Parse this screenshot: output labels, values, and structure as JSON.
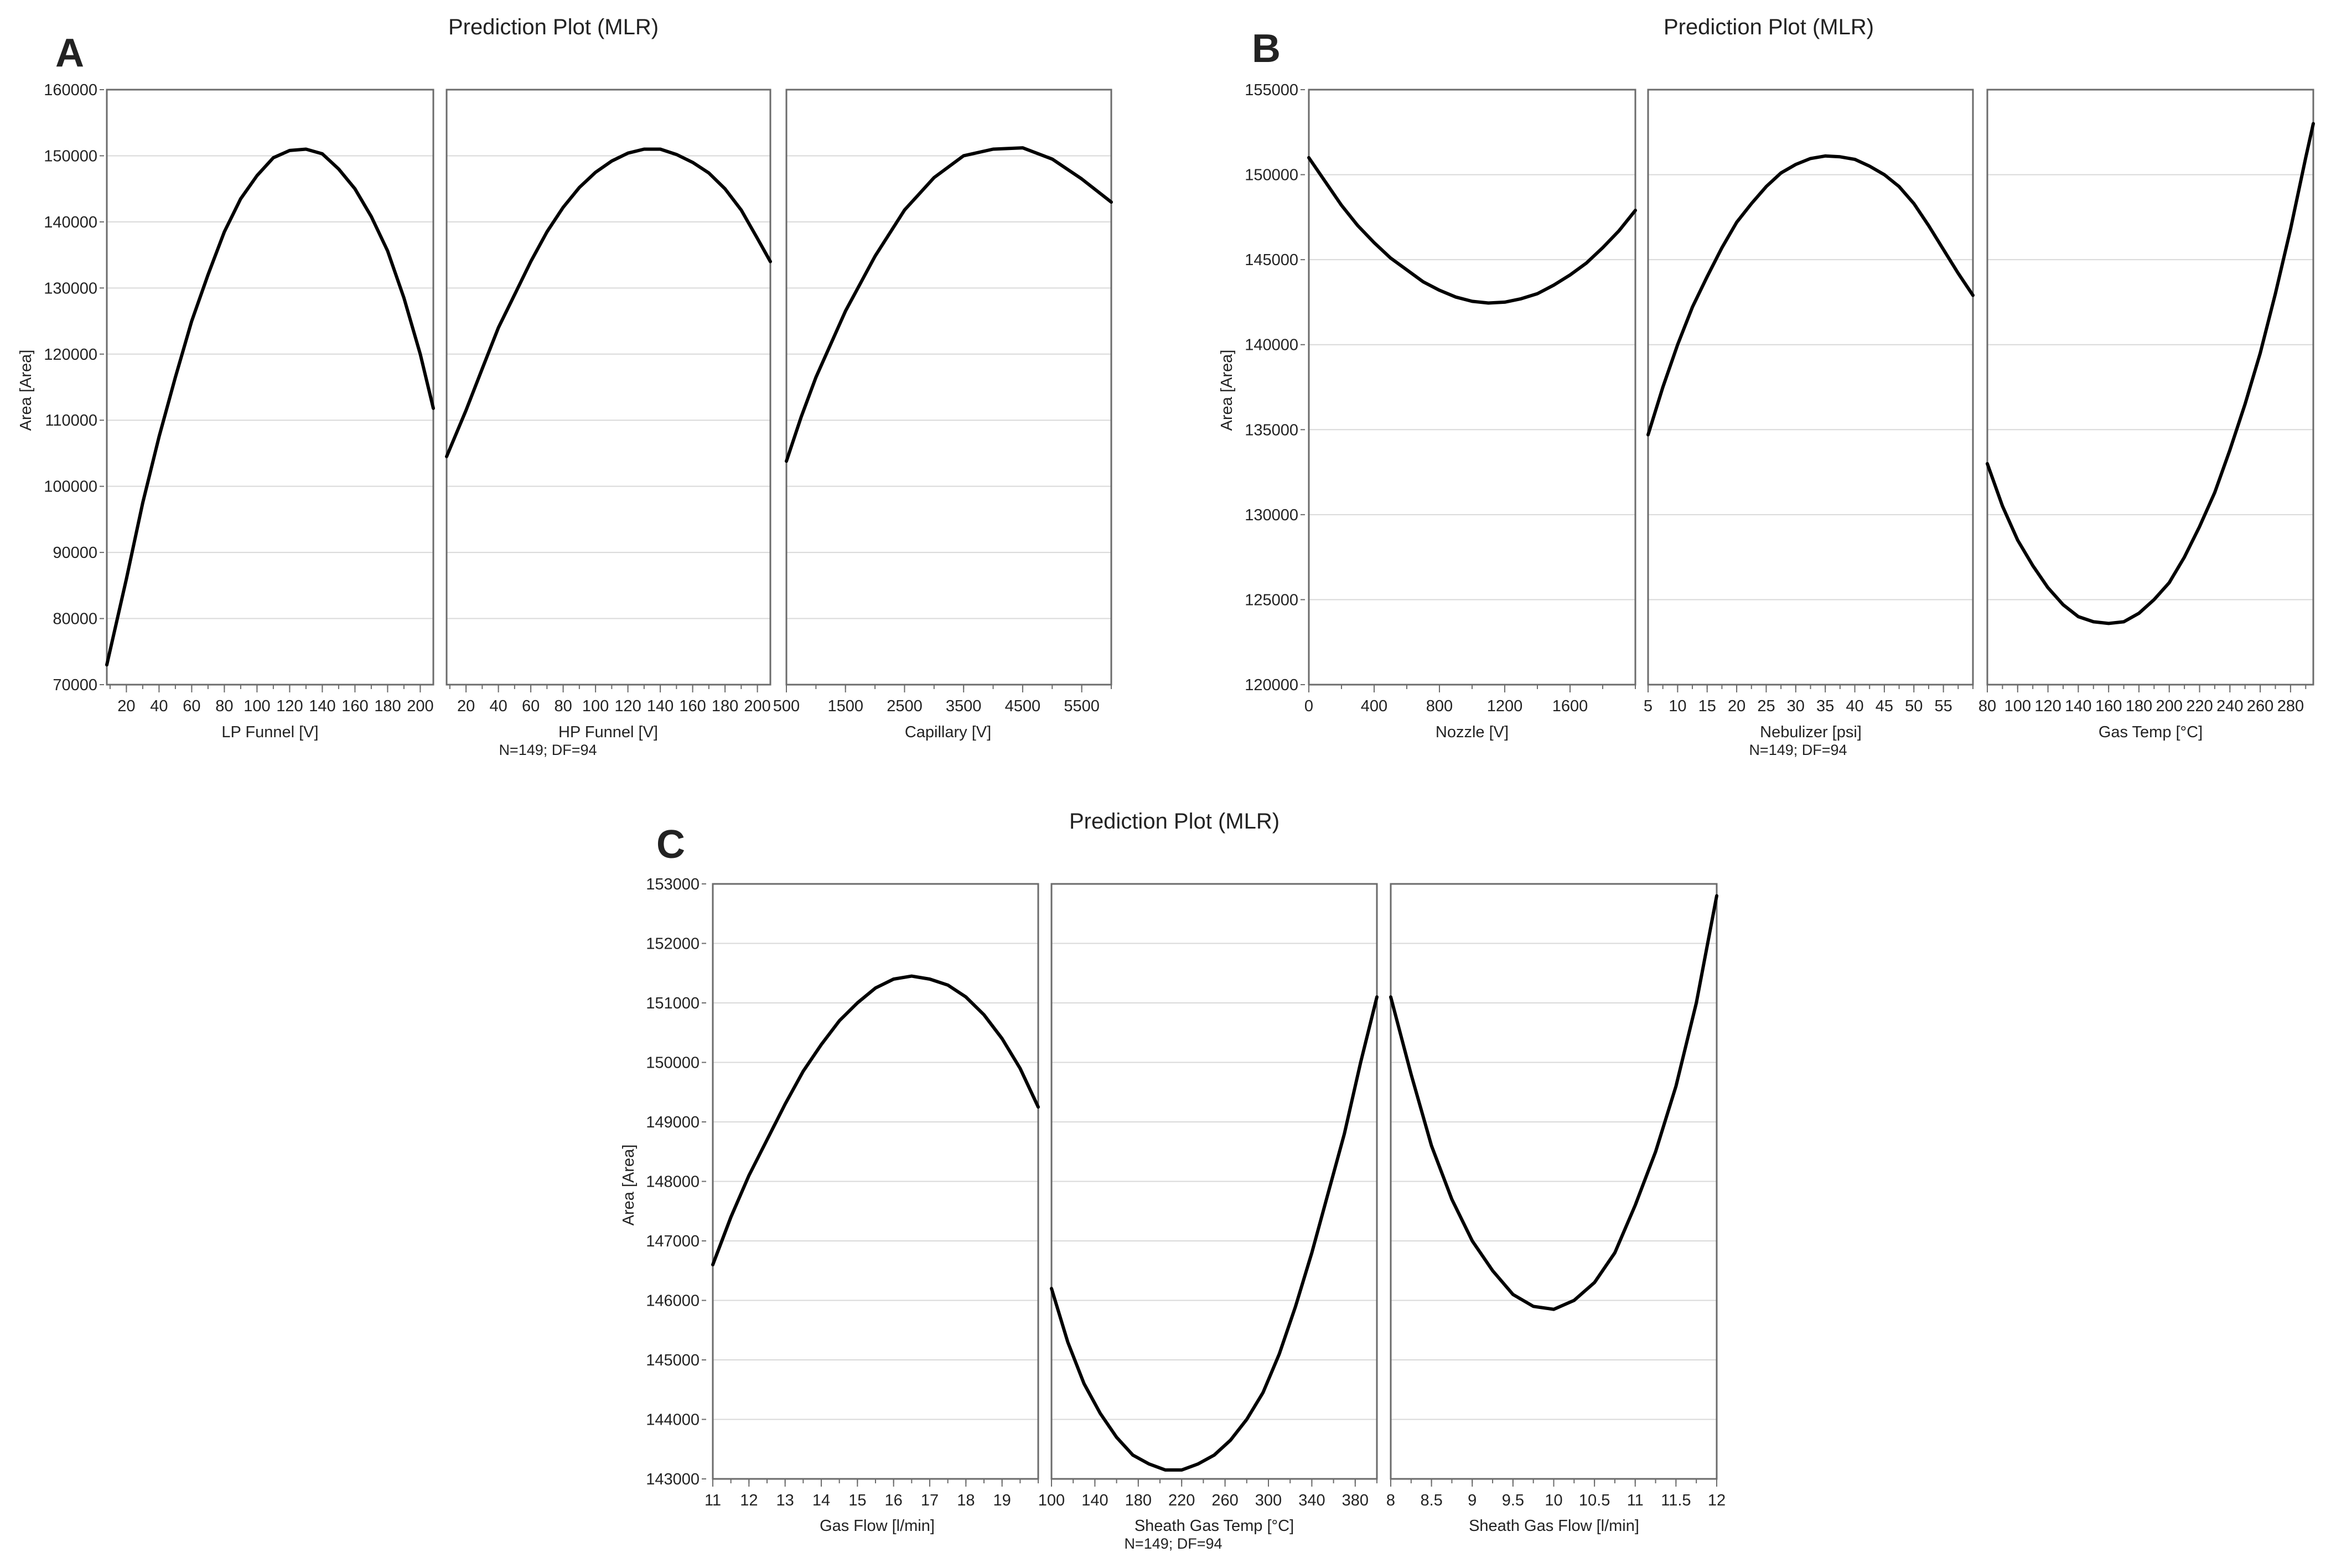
{
  "figure": {
    "colors": {
      "curve": "#000000",
      "frame": "#6b6b6b",
      "grid": "#d9d9d9",
      "text": "#222222",
      "background": "#ffffff"
    }
  },
  "chart_data": [
    {
      "id": "A",
      "type": "line",
      "letter": "A",
      "title": "Prediction Plot (MLR)",
      "ylabel": "Area [Area]",
      "ylim": [
        70000,
        160000
      ],
      "yticks": [
        70000,
        80000,
        90000,
        100000,
        110000,
        120000,
        130000,
        140000,
        150000,
        160000
      ],
      "footnote": "N=149;  DF=94",
      "grid": true,
      "panels": [
        {
          "xlabel": "LP Funnel [V]",
          "xlim": [
            8,
            208
          ],
          "xticks": [
            20,
            40,
            60,
            80,
            100,
            120,
            140,
            160,
            180,
            200
          ],
          "x": [
            8,
            20,
            30,
            40,
            50,
            60,
            70,
            80,
            90,
            100,
            110,
            120,
            130,
            140,
            150,
            160,
            170,
            180,
            190,
            200,
            208
          ],
          "y": [
            73000,
            86000,
            97500,
            107500,
            116500,
            125000,
            132000,
            138500,
            143500,
            147000,
            149700,
            150800,
            151000,
            150300,
            148000,
            145000,
            140800,
            135600,
            128500,
            120000,
            111800
          ]
        },
        {
          "xlabel": "HP Funnel [V]",
          "xlim": [
            8,
            208
          ],
          "xticks": [
            20,
            40,
            60,
            80,
            100,
            120,
            140,
            160,
            180,
            200
          ],
          "x": [
            8,
            20,
            30,
            40,
            50,
            60,
            70,
            80,
            90,
            100,
            110,
            120,
            130,
            140,
            150,
            160,
            170,
            180,
            190,
            200,
            208
          ],
          "y": [
            104500,
            111500,
            117800,
            124000,
            129000,
            134000,
            138500,
            142200,
            145200,
            147500,
            149200,
            150400,
            151000,
            151000,
            150200,
            149000,
            147400,
            145000,
            141800,
            137500,
            134000
          ]
        },
        {
          "xlabel": "Capillary [V]",
          "xlim": [
            500,
            6000
          ],
          "xticks": [
            500,
            1500,
            2500,
            3500,
            4500,
            5500
          ],
          "tick_labels": [
            "500",
            "1500",
            "2500",
            "3500",
            "4500",
            "5500"
          ],
          "x": [
            500,
            750,
            1000,
            1500,
            2000,
            2500,
            3000,
            3500,
            4000,
            4500,
            5000,
            5500,
            6000
          ],
          "y": [
            103800,
            110500,
            116500,
            126500,
            134800,
            141800,
            146700,
            150000,
            151000,
            151200,
            149500,
            146500,
            143000
          ]
        }
      ]
    },
    {
      "id": "B",
      "type": "line",
      "letter": "B",
      "title": "Prediction Plot (MLR)",
      "ylabel": "Area [Area]",
      "ylim": [
        120000,
        155000
      ],
      "yticks": [
        120000,
        125000,
        130000,
        135000,
        140000,
        145000,
        150000,
        155000
      ],
      "footnote": "N=149;  DF=94",
      "grid": true,
      "panels": [
        {
          "xlabel": "Nozzle [V]",
          "xlim": [
            0,
            2000
          ],
          "xticks": [
            0,
            400,
            800,
            1200,
            1600
          ],
          "x": [
            0,
            100,
            200,
            300,
            400,
            500,
            600,
            700,
            800,
            900,
            1000,
            1100,
            1200,
            1300,
            1400,
            1500,
            1600,
            1700,
            1800,
            1900,
            2000
          ],
          "y": [
            151000,
            149600,
            148200,
            147000,
            146000,
            145100,
            144400,
            143700,
            143200,
            142800,
            142550,
            142450,
            142500,
            142700,
            143000,
            143500,
            144100,
            144800,
            145700,
            146700,
            147900
          ]
        },
        {
          "xlabel": "Nebulizer [psi]",
          "xlim": [
            5,
            60
          ],
          "xticks": [
            5,
            10,
            15,
            20,
            25,
            30,
            35,
            40,
            45,
            50,
            55
          ],
          "x": [
            5,
            7.5,
            10,
            12.5,
            15,
            17.5,
            20,
            22.5,
            25,
            27.5,
            30,
            32.5,
            35,
            37.5,
            40,
            42.5,
            45,
            47.5,
            50,
            52.5,
            55,
            57.5,
            60
          ],
          "y": [
            134700,
            137500,
            140000,
            142200,
            144000,
            145700,
            147200,
            148300,
            149300,
            150100,
            150600,
            150950,
            151100,
            151050,
            150900,
            150500,
            150000,
            149300,
            148300,
            147000,
            145600,
            144200,
            142900
          ]
        },
        {
          "xlabel": "Gas Temp [°C]",
          "xlim": [
            80,
            295
          ],
          "xticks": [
            80,
            100,
            120,
            140,
            160,
            180,
            200,
            220,
            240,
            260,
            280
          ],
          "x": [
            80,
            90,
            100,
            110,
            120,
            130,
            140,
            150,
            160,
            170,
            180,
            190,
            200,
            210,
            220,
            230,
            240,
            250,
            260,
            270,
            280,
            290,
            295
          ],
          "y": [
            133000,
            130500,
            128500,
            127000,
            125700,
            124700,
            124000,
            123700,
            123600,
            123700,
            124200,
            125000,
            126000,
            127500,
            129300,
            131300,
            133800,
            136500,
            139500,
            143000,
            146800,
            151000,
            153000
          ]
        }
      ]
    },
    {
      "id": "C",
      "type": "line",
      "letter": "C",
      "title": "Prediction Plot (MLR)",
      "ylabel": "Area [Area]",
      "ylim": [
        143000,
        153000
      ],
      "yticks": [
        143000,
        144000,
        145000,
        146000,
        147000,
        148000,
        149000,
        150000,
        151000,
        152000,
        153000
      ],
      "footnote": "N=149;  DF=94",
      "grid": true,
      "panels": [
        {
          "xlabel": "Gas Flow [l/min]",
          "xlim": [
            11,
            20
          ],
          "xticks": [
            11,
            12,
            13,
            14,
            15,
            16,
            17,
            18,
            19
          ],
          "x": [
            11,
            11.5,
            12,
            12.5,
            13,
            13.5,
            14,
            14.5,
            15,
            15.5,
            16,
            16.5,
            17,
            17.5,
            18,
            18.5,
            19,
            19.5,
            20
          ],
          "y": [
            146600,
            147400,
            148100,
            148700,
            149300,
            149850,
            150300,
            150700,
            151000,
            151250,
            151400,
            151450,
            151400,
            151300,
            151100,
            150800,
            150400,
            149900,
            149250
          ]
        },
        {
          "xlabel": "Sheath Gas Temp [°C]",
          "xlim": [
            100,
            400
          ],
          "xticks": [
            100,
            140,
            180,
            220,
            260,
            300,
            340,
            380
          ],
          "x": [
            100,
            115,
            130,
            145,
            160,
            175,
            190,
            205,
            220,
            235,
            250,
            265,
            280,
            295,
            310,
            325,
            340,
            355,
            370,
            385,
            400
          ],
          "y": [
            146200,
            145300,
            144600,
            144100,
            143700,
            143400,
            143250,
            143150,
            143150,
            143250,
            143400,
            143650,
            144000,
            144450,
            145100,
            145900,
            146800,
            147800,
            148800,
            150000,
            151100
          ]
        },
        {
          "xlabel": "Sheath Gas Flow [l/min]",
          "xlim": [
            8,
            12
          ],
          "xticks": [
            8,
            8.5,
            9,
            9.5,
            10,
            10.5,
            11,
            11.5,
            12
          ],
          "tick_labels": [
            "8",
            "8.5",
            "9",
            "9.5",
            "10",
            "10.5",
            "11",
            "11.5",
            "12"
          ],
          "x": [
            8,
            8.25,
            8.5,
            8.75,
            9,
            9.25,
            9.5,
            9.75,
            10,
            10.25,
            10.5,
            10.75,
            11,
            11.25,
            11.5,
            11.75,
            12
          ],
          "y": [
            151100,
            149800,
            148600,
            147700,
            147000,
            146500,
            146100,
            145900,
            145850,
            146000,
            146300,
            146800,
            147600,
            148500,
            149600,
            151000,
            152800
          ]
        }
      ]
    }
  ]
}
